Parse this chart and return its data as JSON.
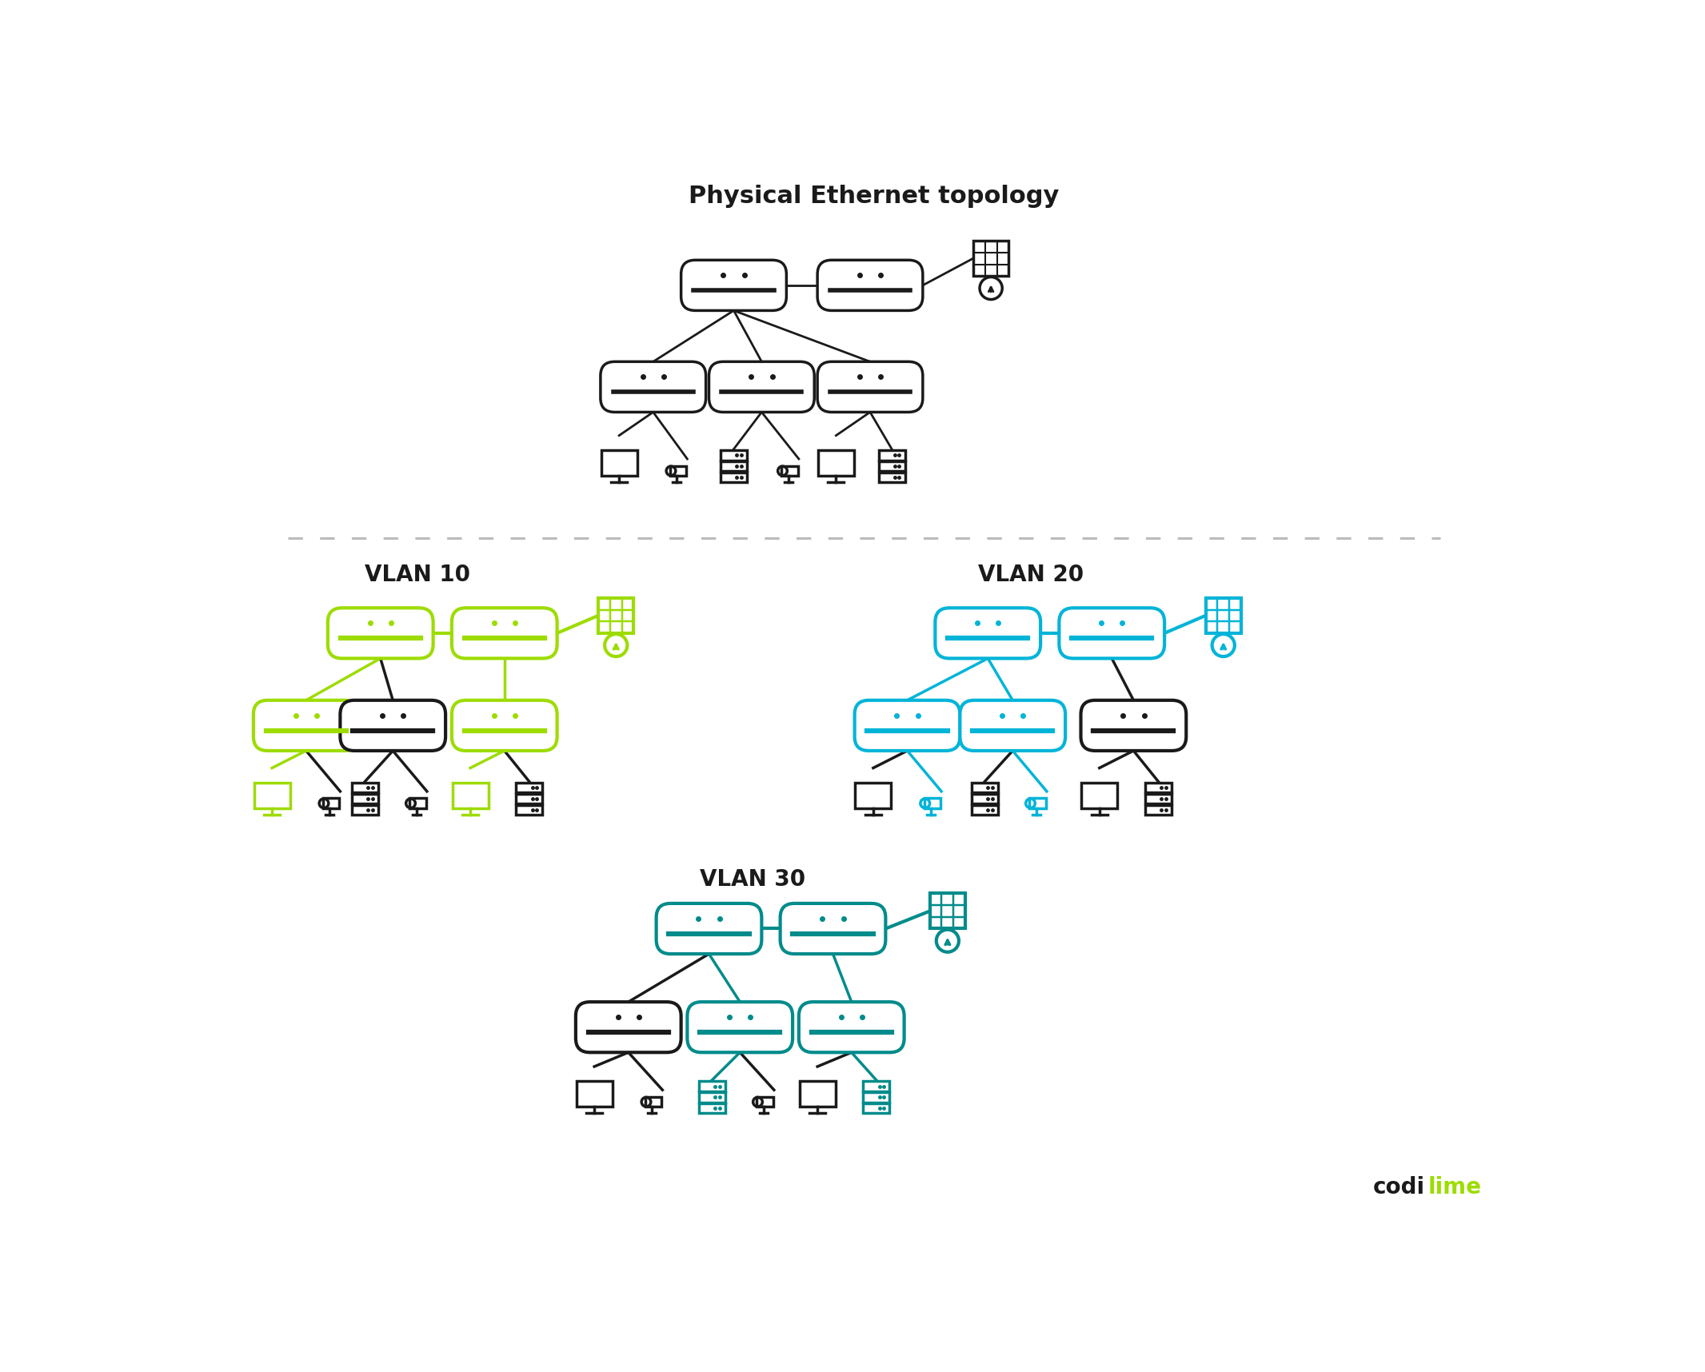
{
  "title": "Physical Ethernet topology",
  "bg_color": "#ffffff",
  "title_fontsize": 22,
  "vlan_label_fontsize": 20,
  "colors": {
    "black": "#1a1a1a",
    "green": "#9ddc00",
    "blue": "#00b4d8",
    "teal": "#008b8b"
  },
  "vlan_labels": [
    "VLAN 10",
    "VLAN 20",
    "VLAN 30"
  ]
}
